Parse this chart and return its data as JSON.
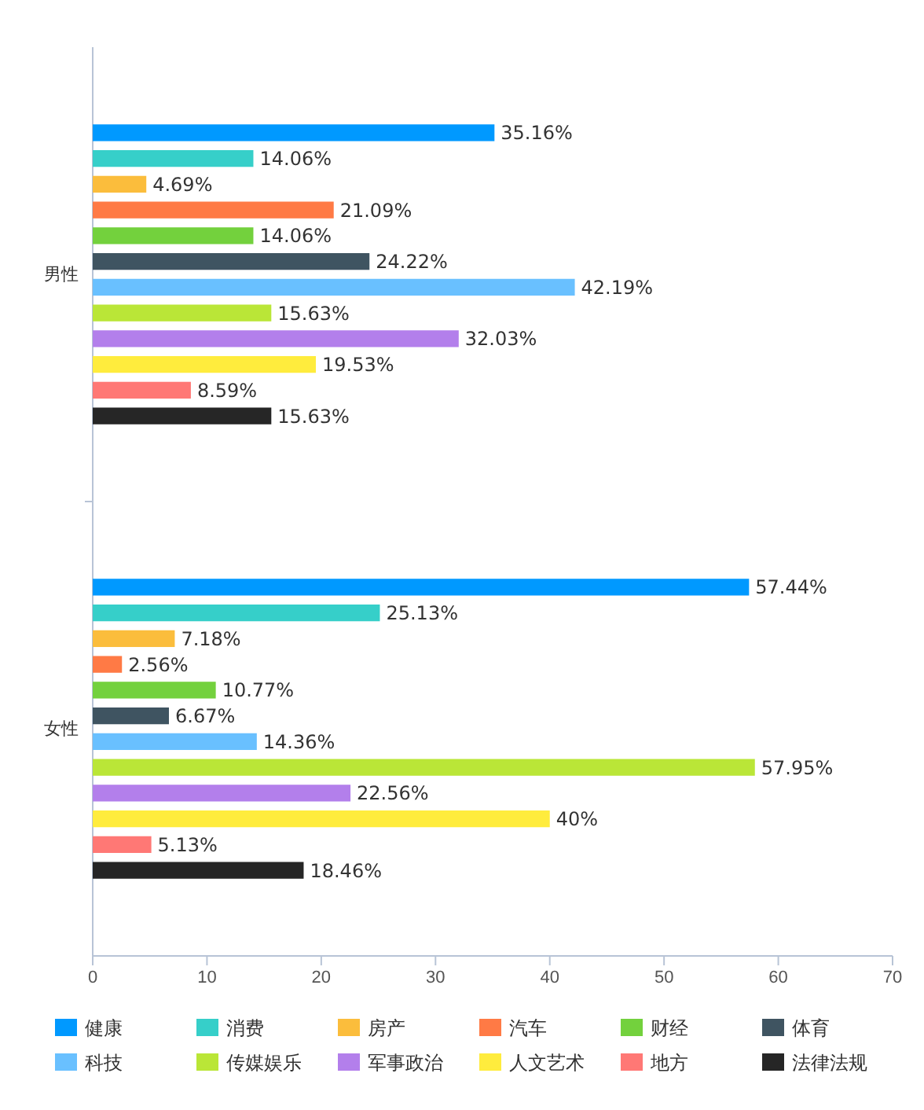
{
  "chart_data": {
    "type": "bar",
    "orientation": "horizontal",
    "categories": [
      "男性",
      "女性"
    ],
    "xlim": [
      0,
      70
    ],
    "xticks": [
      0,
      10,
      20,
      30,
      40,
      50,
      60,
      70
    ],
    "legend": "bottom",
    "series": [
      {
        "name": "健康",
        "color": "#0099ff",
        "values": [
          35.16,
          57.44
        ],
        "value_labels": [
          "35.16%",
          "57.44%"
        ]
      },
      {
        "name": "消费",
        "color": "#36cfc9",
        "values": [
          14.06,
          25.13
        ],
        "value_labels": [
          "14.06%",
          "25.13%"
        ]
      },
      {
        "name": "房产",
        "color": "#fbbd3c",
        "values": [
          4.69,
          7.18
        ],
        "value_labels": [
          "4.69%",
          "7.18%"
        ]
      },
      {
        "name": "汽车",
        "color": "#ff7a45",
        "values": [
          21.09,
          2.56
        ],
        "value_labels": [
          "21.09%",
          "2.56%"
        ]
      },
      {
        "name": "财经",
        "color": "#73d13d",
        "values": [
          14.06,
          10.77
        ],
        "value_labels": [
          "14.06%",
          "10.77%"
        ]
      },
      {
        "name": "体育",
        "color": "#3f5461",
        "values": [
          24.22,
          6.67
        ],
        "value_labels": [
          "24.22%",
          "6.67%"
        ]
      },
      {
        "name": "科技",
        "color": "#69c0ff",
        "values": [
          42.19,
          14.36
        ],
        "value_labels": [
          "42.19%",
          "14.36%"
        ]
      },
      {
        "name": "传媒娱乐",
        "color": "#bae637",
        "values": [
          15.63,
          57.95
        ],
        "value_labels": [
          "15.63%",
          "57.95%"
        ]
      },
      {
        "name": "军事政治",
        "color": "#b37feb",
        "values": [
          32.03,
          22.56
        ],
        "value_labels": [
          "32.03%",
          "22.56%"
        ]
      },
      {
        "name": "人文艺术",
        "color": "#ffec3d",
        "values": [
          19.53,
          40
        ],
        "value_labels": [
          "19.53%",
          "40%"
        ]
      },
      {
        "name": "地方",
        "color": "#ff7875",
        "values": [
          8.59,
          5.13
        ],
        "value_labels": [
          "8.59%",
          "5.13%"
        ]
      },
      {
        "name": "法律法规",
        "color": "#262626",
        "values": [
          15.63,
          18.46
        ],
        "value_labels": [
          "15.63%",
          "18.46%"
        ]
      }
    ]
  }
}
